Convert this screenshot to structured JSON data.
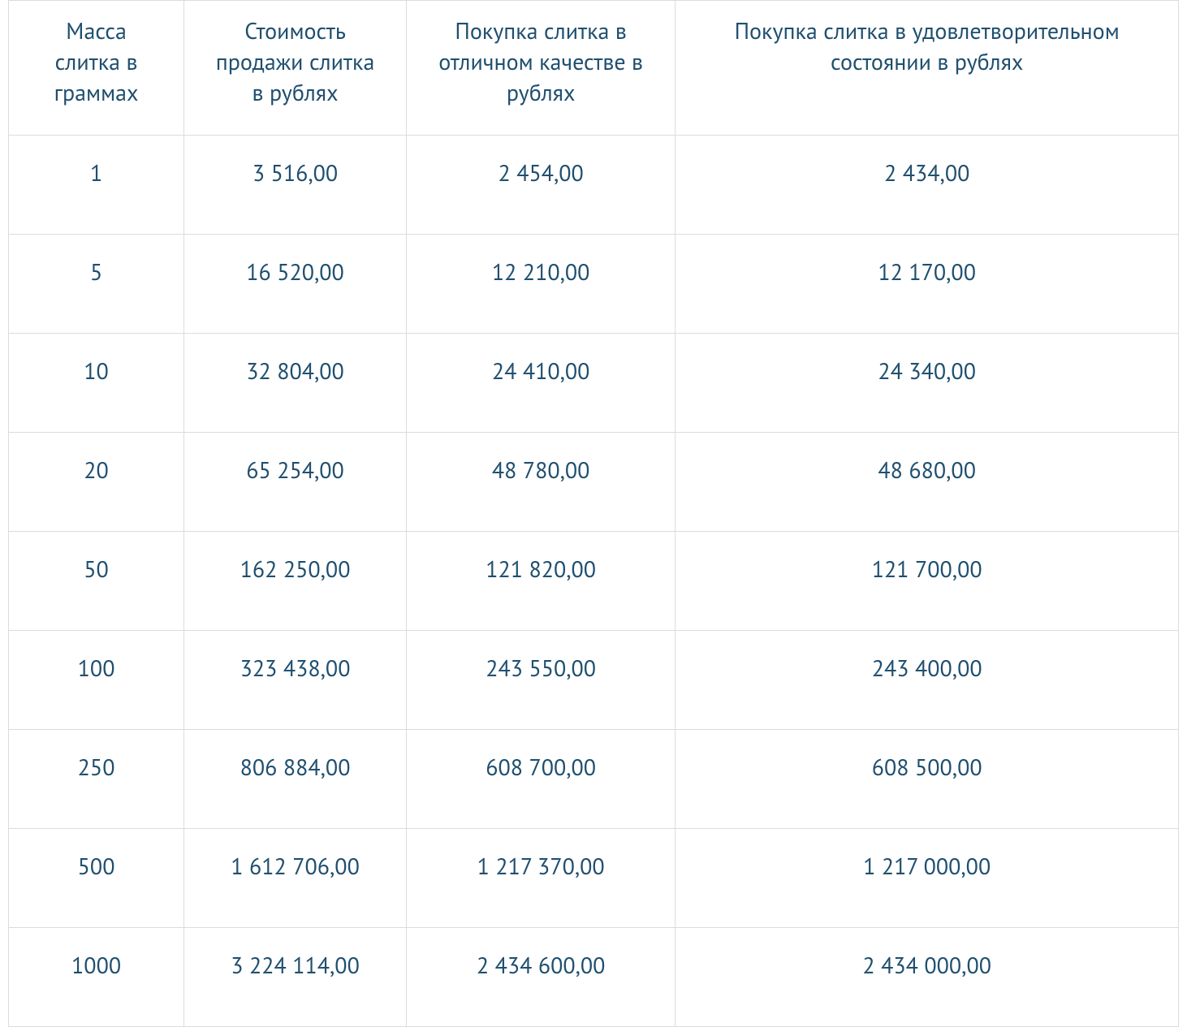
{
  "table": {
    "type": "table",
    "text_color": "#1f4f6f",
    "border_color": "#d9dde0",
    "background_color": "#ffffff",
    "header_fontsize_pt": 21,
    "cell_fontsize_pt": 21,
    "font_family": "PT Sans, Helvetica Neue, Arial, sans-serif",
    "column_widths_pct": [
      15,
      19,
      23,
      43
    ],
    "columns": [
      "Масса слитка в граммах",
      "Стоимость продажи слитка в рублях",
      "Покупка слитка в отличном качестве в рублях",
      "Покупка слитка в удовлетворительном состоянии в рублях"
    ],
    "rows": [
      [
        "1",
        "3 516,00",
        "2 454,00",
        "2 434,00"
      ],
      [
        "5",
        "16 520,00",
        "12 210,00",
        "12 170,00"
      ],
      [
        "10",
        "32 804,00",
        "24 410,00",
        "24 340,00"
      ],
      [
        "20",
        "65 254,00",
        "48 780,00",
        "48 680,00"
      ],
      [
        "50",
        "162 250,00",
        "121 820,00",
        "121 700,00"
      ],
      [
        "100",
        "323 438,00",
        "243 550,00",
        "243 400,00"
      ],
      [
        "250",
        "806 884,00",
        "608 700,00",
        "608 500,00"
      ],
      [
        "500",
        "1 612 706,00",
        "1 217 370,00",
        "1 217 000,00"
      ],
      [
        "1000",
        "3 224 114,00",
        "2 434 600,00",
        "2 434 000,00"
      ]
    ]
  }
}
